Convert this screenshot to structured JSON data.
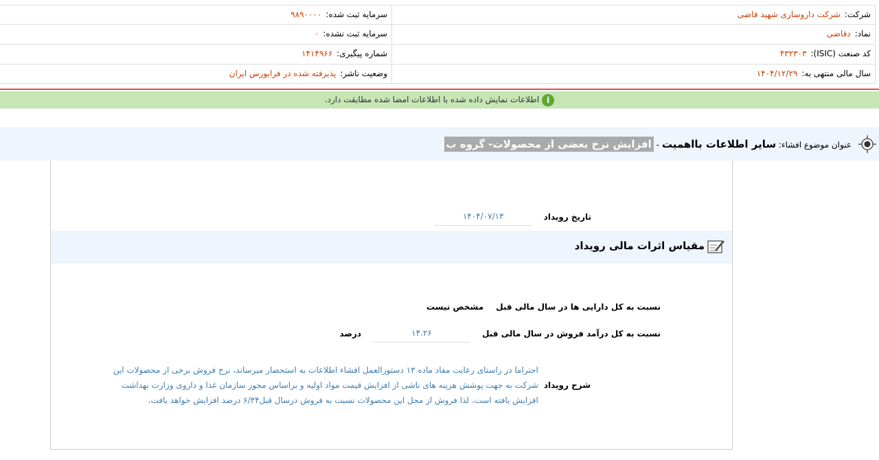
{
  "header": {
    "right": [
      {
        "label": "شرکت:",
        "value": "شرکت داروسازی شهید قاضی"
      },
      {
        "label": "نماد:",
        "value": "دقاضی"
      },
      {
        "label": "کد صنعت (ISIC):",
        "value": "۴۳۲۳۰۳"
      },
      {
        "label": "سال مالی منتهی به:",
        "value": "۱۴۰۴/۱۲/۲۹"
      }
    ],
    "left": [
      {
        "label": "سرمایه ثبت شده:",
        "value": "۹۸۹۰۰۰۰"
      },
      {
        "label": "سرمایه ثبت نشده:",
        "value": "۰"
      },
      {
        "label": "شماره پیگیری:",
        "value": "۱۴۱۴۹۶۶"
      },
      {
        "label": "وضعیت ناشر:",
        "value": "پذیرفته شده در فرابورس ایران"
      }
    ]
  },
  "notice": {
    "icon": "info-icon",
    "text": "اطلاعات نمایش داده شده با اطلاعات امضا شده مطابقت دارد."
  },
  "title": {
    "icon": "target-icon",
    "prefix": "عنوان موضوع افشاء:",
    "category": "سایر اطلاعات بااهمیت",
    "separator": "-",
    "subject": "افزایش نرخ بعضی از محصولات- گروه ب"
  },
  "event_date": {
    "label": "تاریخ رویداد",
    "value": "۱۴۰۴/۰۷/۱۳"
  },
  "section": {
    "icon": "edit-note-icon",
    "title": "مقیاس اثرات مالی رویداد"
  },
  "ratios": [
    {
      "label": "نسبت به کل دارایی ها در سال مالی قبل",
      "value": "مشخص نیست",
      "unit": ""
    },
    {
      "label": "نسبت به کل درآمد فروش در سال مالی قبل",
      "value": "۱۴.۲۶",
      "unit": "درصد"
    }
  ],
  "description": {
    "label": "شرح رویداد",
    "lines": [
      "احتراما در راستای رعایت مفاد ماده ۱۳ دستورالعمل افشاء اطلاعات به استحضار میرساند، نرخ فروش برخی از محصولات این",
      "شرکت به جهت پوشش هزینه های ناشی از افزایش قیمت مواد اولیه و براساس مجوز سازمان غذا و داروی وزارت بهداشت",
      "افزایش یافته است. لذا فروش از محل این محصولات نسبت به فروش درسال قبل۶/۳۴ درصد افزایش خواهد یافت."
    ]
  },
  "colors": {
    "value": "#c4420b",
    "blue_text": "#3f7fb0",
    "notice_bg": "#c6e6b4",
    "band_bg": "#eef5fc",
    "alert_line": "#e54b4b"
  }
}
